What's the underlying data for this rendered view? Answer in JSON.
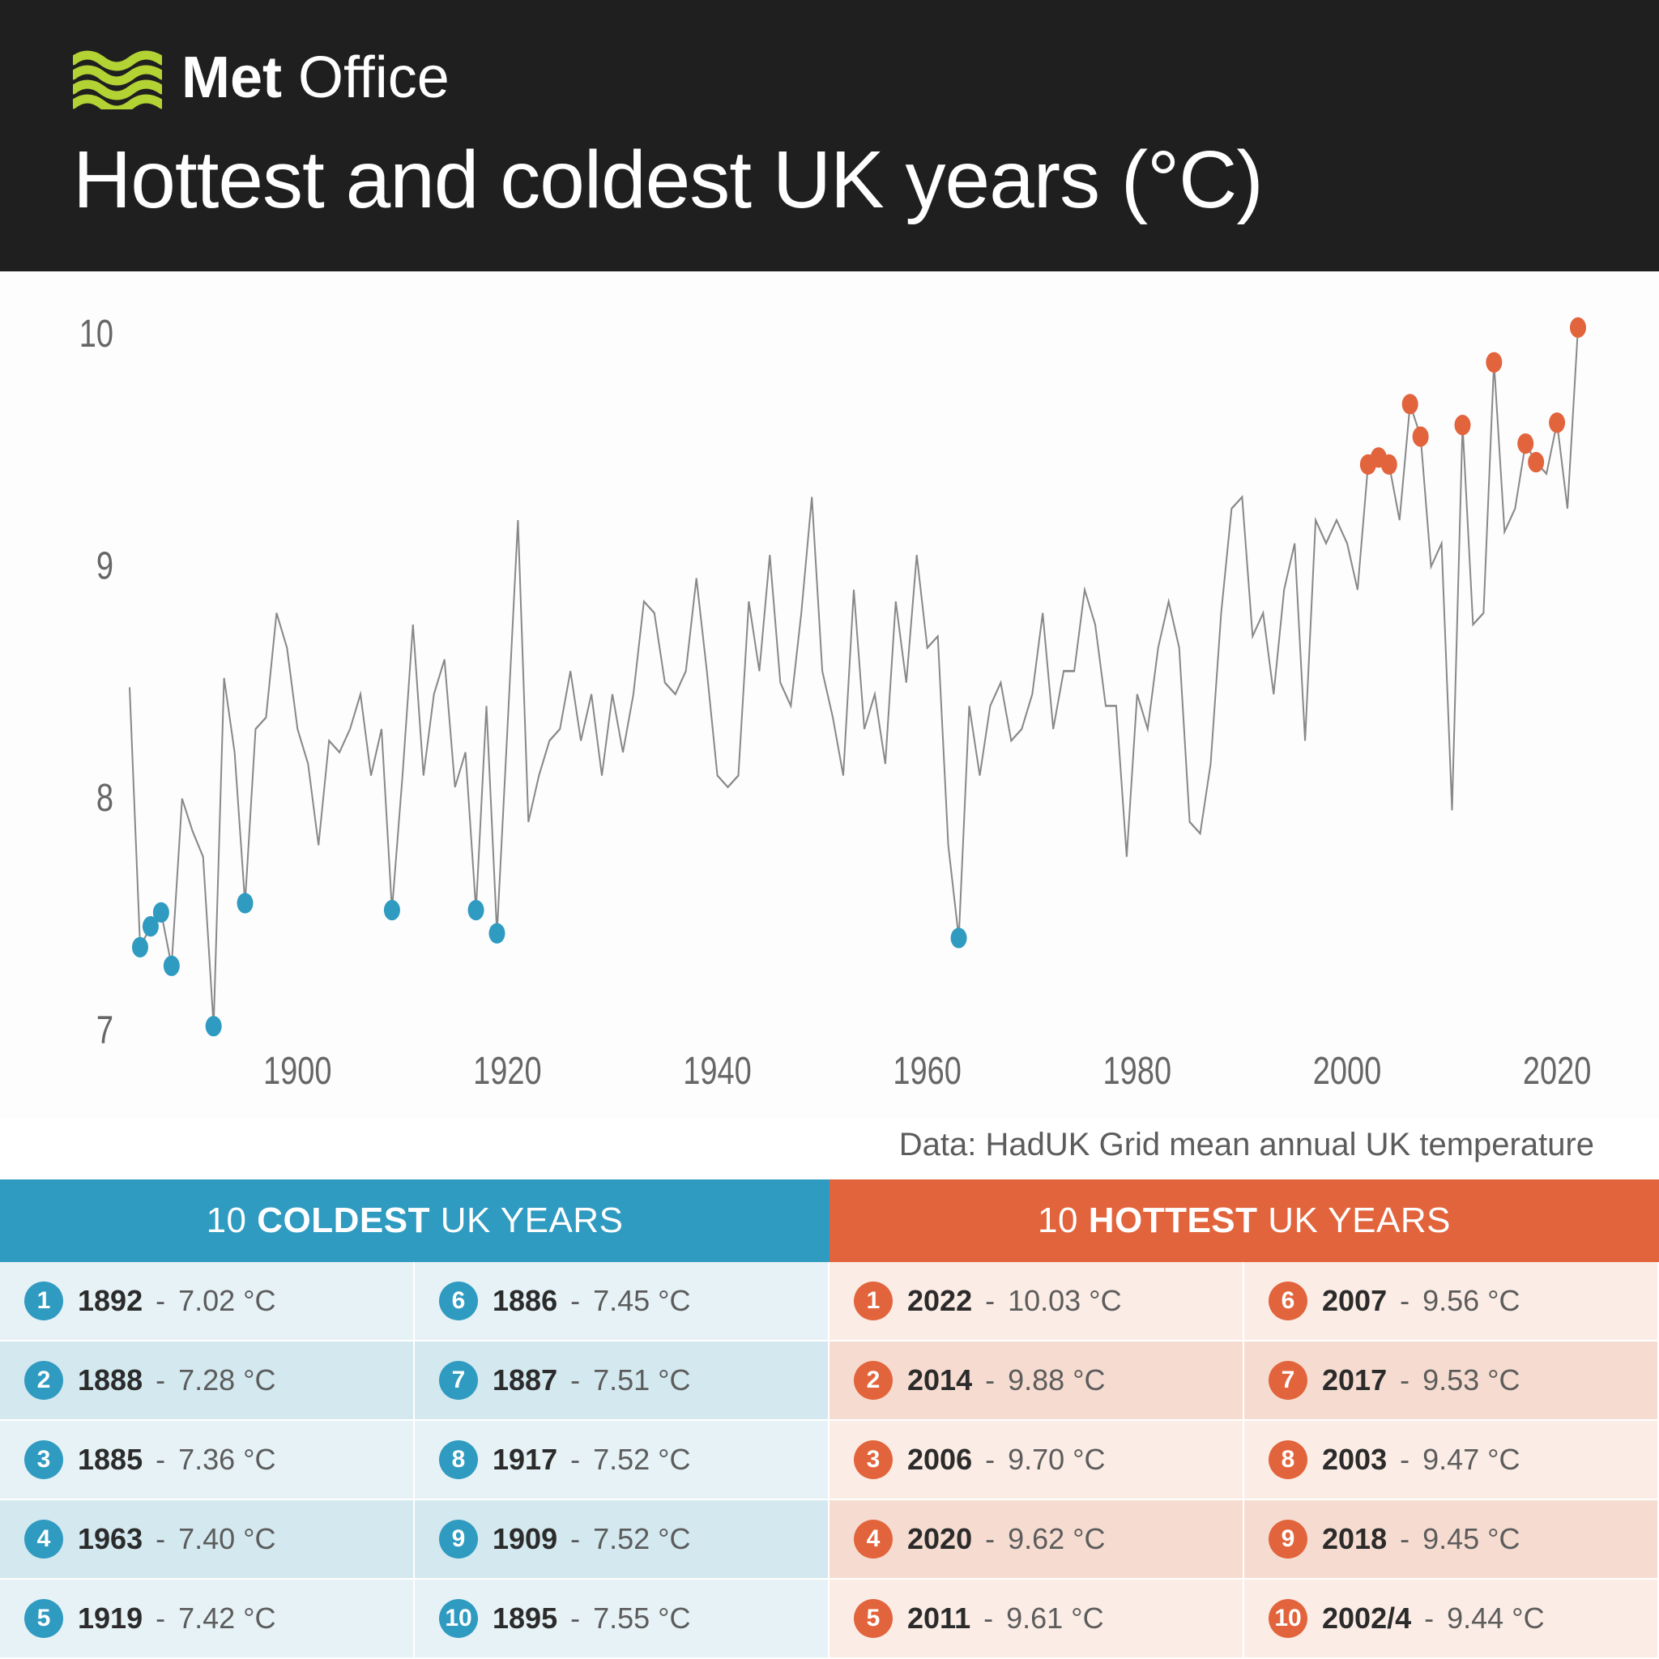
{
  "header": {
    "logo_text_bold": "Met",
    "logo_text_rest": " Office",
    "title": "Hottest and coldest UK years (°C)",
    "bg_color": "#1f1f1f",
    "logo_wave_color": "#b3d233",
    "text_color": "#ffffff",
    "title_fontsize": 100,
    "logo_fontsize": 72
  },
  "chart": {
    "type": "line",
    "background_color": "#fdfdfd",
    "line_color": "#888888",
    "line_width": 2,
    "cold_marker_color": "#2f9bc1",
    "hot_marker_color": "#e2643c",
    "marker_radius": 10,
    "axis_text_color": "#666666",
    "axis_fontsize": 38,
    "xlim": [
      1884,
      2022
    ],
    "ylim": [
      7,
      10
    ],
    "xticks": [
      1900,
      1920,
      1940,
      1960,
      1980,
      2000,
      2020
    ],
    "yticks": [
      7,
      8,
      9,
      10
    ],
    "caption": "Data: HadUK Grid mean annual UK temperature",
    "caption_color": "#5c5c5c",
    "caption_fontsize": 40,
    "series": [
      {
        "x": 1884,
        "y": 8.48
      },
      {
        "x": 1885,
        "y": 7.36,
        "m": "cold"
      },
      {
        "x": 1886,
        "y": 7.45,
        "m": "cold"
      },
      {
        "x": 1887,
        "y": 7.51,
        "m": "cold"
      },
      {
        "x": 1888,
        "y": 7.28,
        "m": "cold"
      },
      {
        "x": 1889,
        "y": 8.0
      },
      {
        "x": 1890,
        "y": 7.86
      },
      {
        "x": 1891,
        "y": 7.75
      },
      {
        "x": 1892,
        "y": 7.02,
        "m": "cold"
      },
      {
        "x": 1893,
        "y": 8.52
      },
      {
        "x": 1894,
        "y": 8.2
      },
      {
        "x": 1895,
        "y": 7.55,
        "m": "cold"
      },
      {
        "x": 1896,
        "y": 8.3
      },
      {
        "x": 1897,
        "y": 8.35
      },
      {
        "x": 1898,
        "y": 8.8
      },
      {
        "x": 1899,
        "y": 8.65
      },
      {
        "x": 1900,
        "y": 8.3
      },
      {
        "x": 1901,
        "y": 8.15
      },
      {
        "x": 1902,
        "y": 7.8
      },
      {
        "x": 1903,
        "y": 8.25
      },
      {
        "x": 1904,
        "y": 8.2
      },
      {
        "x": 1905,
        "y": 8.3
      },
      {
        "x": 1906,
        "y": 8.45
      },
      {
        "x": 1907,
        "y": 8.1
      },
      {
        "x": 1908,
        "y": 8.3
      },
      {
        "x": 1909,
        "y": 7.52,
        "m": "cold"
      },
      {
        "x": 1910,
        "y": 8.1
      },
      {
        "x": 1911,
        "y": 8.75
      },
      {
        "x": 1912,
        "y": 8.1
      },
      {
        "x": 1913,
        "y": 8.45
      },
      {
        "x": 1914,
        "y": 8.6
      },
      {
        "x": 1915,
        "y": 8.05
      },
      {
        "x": 1916,
        "y": 8.2
      },
      {
        "x": 1917,
        "y": 7.52,
        "m": "cold"
      },
      {
        "x": 1918,
        "y": 8.4
      },
      {
        "x": 1919,
        "y": 7.42,
        "m": "cold"
      },
      {
        "x": 1920,
        "y": 8.3
      },
      {
        "x": 1921,
        "y": 9.2
      },
      {
        "x": 1922,
        "y": 7.9
      },
      {
        "x": 1923,
        "y": 8.1
      },
      {
        "x": 1924,
        "y": 8.25
      },
      {
        "x": 1925,
        "y": 8.3
      },
      {
        "x": 1926,
        "y": 8.55
      },
      {
        "x": 1927,
        "y": 8.25
      },
      {
        "x": 1928,
        "y": 8.45
      },
      {
        "x": 1929,
        "y": 8.1
      },
      {
        "x": 1930,
        "y": 8.45
      },
      {
        "x": 1931,
        "y": 8.2
      },
      {
        "x": 1932,
        "y": 8.45
      },
      {
        "x": 1933,
        "y": 8.85
      },
      {
        "x": 1934,
        "y": 8.8
      },
      {
        "x": 1935,
        "y": 8.5
      },
      {
        "x": 1936,
        "y": 8.45
      },
      {
        "x": 1937,
        "y": 8.55
      },
      {
        "x": 1938,
        "y": 8.95
      },
      {
        "x": 1939,
        "y": 8.55
      },
      {
        "x": 1940,
        "y": 8.1
      },
      {
        "x": 1941,
        "y": 8.05
      },
      {
        "x": 1942,
        "y": 8.1
      },
      {
        "x": 1943,
        "y": 8.85
      },
      {
        "x": 1944,
        "y": 8.55
      },
      {
        "x": 1945,
        "y": 9.05
      },
      {
        "x": 1946,
        "y": 8.5
      },
      {
        "x": 1947,
        "y": 8.4
      },
      {
        "x": 1948,
        "y": 8.8
      },
      {
        "x": 1949,
        "y": 9.3
      },
      {
        "x": 1950,
        "y": 8.55
      },
      {
        "x": 1951,
        "y": 8.35
      },
      {
        "x": 1952,
        "y": 8.1
      },
      {
        "x": 1953,
        "y": 8.9
      },
      {
        "x": 1954,
        "y": 8.3
      },
      {
        "x": 1955,
        "y": 8.45
      },
      {
        "x": 1956,
        "y": 8.15
      },
      {
        "x": 1957,
        "y": 8.85
      },
      {
        "x": 1958,
        "y": 8.5
      },
      {
        "x": 1959,
        "y": 9.05
      },
      {
        "x": 1960,
        "y": 8.65
      },
      {
        "x": 1961,
        "y": 8.7
      },
      {
        "x": 1962,
        "y": 7.8
      },
      {
        "x": 1963,
        "y": 7.4,
        "m": "cold"
      },
      {
        "x": 1964,
        "y": 8.4
      },
      {
        "x": 1965,
        "y": 8.1
      },
      {
        "x": 1966,
        "y": 8.4
      },
      {
        "x": 1967,
        "y": 8.5
      },
      {
        "x": 1968,
        "y": 8.25
      },
      {
        "x": 1969,
        "y": 8.3
      },
      {
        "x": 1970,
        "y": 8.45
      },
      {
        "x": 1971,
        "y": 8.8
      },
      {
        "x": 1972,
        "y": 8.3
      },
      {
        "x": 1973,
        "y": 8.55
      },
      {
        "x": 1974,
        "y": 8.55
      },
      {
        "x": 1975,
        "y": 8.9
      },
      {
        "x": 1976,
        "y": 8.75
      },
      {
        "x": 1977,
        "y": 8.4
      },
      {
        "x": 1978,
        "y": 8.4
      },
      {
        "x": 1979,
        "y": 7.75
      },
      {
        "x": 1980,
        "y": 8.45
      },
      {
        "x": 1981,
        "y": 8.3
      },
      {
        "x": 1982,
        "y": 8.65
      },
      {
        "x": 1983,
        "y": 8.85
      },
      {
        "x": 1984,
        "y": 8.65
      },
      {
        "x": 1985,
        "y": 7.9
      },
      {
        "x": 1986,
        "y": 7.85
      },
      {
        "x": 1987,
        "y": 8.15
      },
      {
        "x": 1988,
        "y": 8.8
      },
      {
        "x": 1989,
        "y": 9.25
      },
      {
        "x": 1990,
        "y": 9.3
      },
      {
        "x": 1991,
        "y": 8.7
      },
      {
        "x": 1992,
        "y": 8.8
      },
      {
        "x": 1993,
        "y": 8.45
      },
      {
        "x": 1994,
        "y": 8.9
      },
      {
        "x": 1995,
        "y": 9.1
      },
      {
        "x": 1996,
        "y": 8.25
      },
      {
        "x": 1997,
        "y": 9.2
      },
      {
        "x": 1998,
        "y": 9.1
      },
      {
        "x": 1999,
        "y": 9.2
      },
      {
        "x": 2000,
        "y": 9.1
      },
      {
        "x": 2001,
        "y": 8.9
      },
      {
        "x": 2002,
        "y": 9.44,
        "m": "hot"
      },
      {
        "x": 2003,
        "y": 9.47,
        "m": "hot"
      },
      {
        "x": 2004,
        "y": 9.44,
        "m": "hot"
      },
      {
        "x": 2005,
        "y": 9.2
      },
      {
        "x": 2006,
        "y": 9.7,
        "m": "hot"
      },
      {
        "x": 2007,
        "y": 9.56,
        "m": "hot"
      },
      {
        "x": 2008,
        "y": 9.0
      },
      {
        "x": 2009,
        "y": 9.1
      },
      {
        "x": 2010,
        "y": 7.95
      },
      {
        "x": 2011,
        "y": 9.61,
        "m": "hot"
      },
      {
        "x": 2012,
        "y": 8.75
      },
      {
        "x": 2013,
        "y": 8.8
      },
      {
        "x": 2014,
        "y": 9.88,
        "m": "hot"
      },
      {
        "x": 2015,
        "y": 9.15
      },
      {
        "x": 2016,
        "y": 9.25
      },
      {
        "x": 2017,
        "y": 9.53,
        "m": "hot"
      },
      {
        "x": 2018,
        "y": 9.45,
        "m": "hot"
      },
      {
        "x": 2019,
        "y": 9.4
      },
      {
        "x": 2020,
        "y": 9.62,
        "m": "hot"
      },
      {
        "x": 2021,
        "y": 9.25
      },
      {
        "x": 2022,
        "y": 10.03,
        "m": "hot"
      }
    ]
  },
  "tables": {
    "cold": {
      "title_pre": "10 ",
      "title_bold": "COLDEST",
      "title_post": " UK YEARS",
      "header_bg": "#2f9bc1",
      "row_bg_odd": "#e6f2f6",
      "row_bg_even": "#d3e8ef",
      "badge_bg": "#2f9bc1",
      "items": [
        {
          "rank": "1",
          "year": "1892",
          "temp": "7.02 °C"
        },
        {
          "rank": "2",
          "year": "1888",
          "temp": "7.28 °C"
        },
        {
          "rank": "3",
          "year": "1885",
          "temp": "7.36 °C"
        },
        {
          "rank": "4",
          "year": "1963",
          "temp": "7.40 °C"
        },
        {
          "rank": "5",
          "year": "1919",
          "temp": "7.42 °C"
        },
        {
          "rank": "6",
          "year": "1886",
          "temp": "7.45 °C"
        },
        {
          "rank": "7",
          "year": "1887",
          "temp": "7.51 °C"
        },
        {
          "rank": "8",
          "year": "1917",
          "temp": "7.52 °C"
        },
        {
          "rank": "9",
          "year": "1909",
          "temp": "7.52 °C"
        },
        {
          "rank": "10",
          "year": "1895",
          "temp": "7.55 °C"
        }
      ]
    },
    "hot": {
      "title_pre": "10 ",
      "title_bold": "HOTTEST",
      "title_post": " UK YEARS",
      "header_bg": "#e2643c",
      "row_bg_odd": "#fbece5",
      "row_bg_even": "#f6dcd0",
      "badge_bg": "#e2643c",
      "items": [
        {
          "rank": "1",
          "year": "2022",
          "temp": "10.03 °C"
        },
        {
          "rank": "2",
          "year": "2014",
          "temp": "9.88 °C"
        },
        {
          "rank": "3",
          "year": "2006",
          "temp": "9.70 °C"
        },
        {
          "rank": "4",
          "year": "2020",
          "temp": "9.62 °C"
        },
        {
          "rank": "5",
          "year": "2011",
          "temp": "9.61 °C"
        },
        {
          "rank": "6",
          "year": "2007",
          "temp": "9.56 °C"
        },
        {
          "rank": "7",
          "year": "2017",
          "temp": "9.53 °C"
        },
        {
          "rank": "8",
          "year": "2003",
          "temp": "9.47 °C"
        },
        {
          "rank": "9",
          "year": "2018",
          "temp": "9.45 °C"
        },
        {
          "rank": "10",
          "year": "2002/4",
          "temp": "9.44 °C"
        }
      ]
    }
  }
}
